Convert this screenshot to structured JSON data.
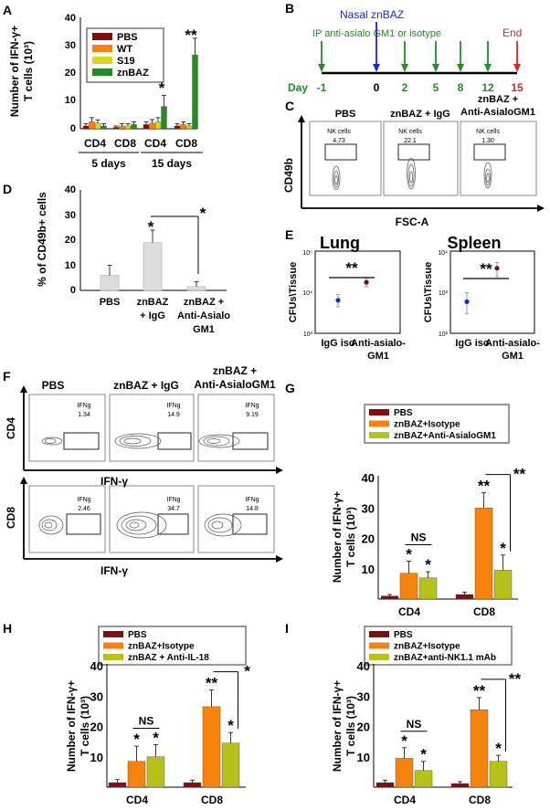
{
  "colors": {
    "pbs": "#7b1010",
    "orange": "#f7830f",
    "yellowgreen": "#b6c21b",
    "green": "#238b23",
    "s19": "#d8d820",
    "blue": "#1a25d8",
    "red": "#e32020",
    "lung_green": "#2a8a2a"
  },
  "panels": {
    "A": {
      "letter": "A",
      "ylabel1": "Number  of IFN-γ+",
      "ylabel2": "T cells (10³)",
      "yticks": [
        "0",
        "10",
        "20",
        "30",
        "40"
      ],
      "legend": [
        "PBS",
        "WT",
        "S19",
        "znBAZ"
      ],
      "groups": [
        "CD4",
        "CD8",
        "CD4",
        "CD8"
      ],
      "days": [
        "5 days",
        "15 days"
      ],
      "stars": [
        "*",
        "**"
      ]
    },
    "B": {
      "letter": "B",
      "nasal": "Nasal znBAZ",
      "ip": "IP anti-asialo GM1 or isotype",
      "end": "End",
      "day_label": "Day",
      "days": [
        "-1",
        "0",
        "2",
        "5",
        "8",
        "12",
        "15"
      ]
    },
    "C": {
      "letter": "C",
      "titles": [
        "PBS",
        "znBAZ + IgG",
        "znBAZ +",
        "Anti-AsialoGM1"
      ],
      "gate_label": "NK cells",
      "gate_values": [
        "4.73",
        "22.1",
        "1.30"
      ],
      "ylabel": "CD49b",
      "xlabel": "FSC-A"
    },
    "D": {
      "letter": "D",
      "ylabel": "% of CD49b+ cells",
      "yticks": [
        "0",
        "10",
        "20",
        "30",
        "40"
      ],
      "cats": [
        "PBS",
        "znBAZ",
        "+ IgG",
        "znBAZ +",
        "Anti-Asialo",
        "GM1"
      ],
      "stars": [
        "*",
        "*"
      ]
    },
    "E": {
      "letter": "E",
      "titles": [
        "Lung",
        "Spleen"
      ],
      "ylabel": "CFUs\\Tissue",
      "lung_ticks": [
        "10⁵",
        "10⁴",
        "10³"
      ],
      "spleen_ticks": [
        "10⁴",
        "10³",
        "10²"
      ],
      "xcats": [
        "IgG iso",
        "Anti-asialo-",
        "GM1"
      ],
      "stars": [
        "**",
        "**"
      ]
    },
    "F": {
      "letter": "F",
      "titles": [
        "PBS",
        "znBAZ + IgG",
        "znBAZ +",
        "Anti-AsialoGM1"
      ],
      "gate_label": "IFNg",
      "cd4_values": [
        "1.34",
        "14.9",
        "9.19"
      ],
      "cd8_values": [
        "2.46",
        "34.7",
        "14.8"
      ],
      "ylabel_top": "CD4",
      "ylabel_bottom": "CD8",
      "xlabel": "IFN-γ"
    },
    "G": {
      "letter": "G",
      "legend": [
        "PBS",
        "znBAZ+Isotype",
        "znBAZ+Anti-AsialoGM1"
      ],
      "yticks": [
        "10",
        "20",
        "30",
        "40"
      ],
      "cats": [
        "CD4",
        "CD8"
      ],
      "ns": "NS",
      "ylabel1": "Number  of IFN-γ+",
      "ylabel2": "T cells (10³)"
    },
    "H": {
      "letter": "H",
      "legend": [
        "PBS",
        "znBAZ+Isotype",
        "znBAZ + Anti-IL-18"
      ],
      "yticks": [
        "10",
        "20",
        "30",
        "40"
      ],
      "cats": [
        "CD4",
        "CD8"
      ],
      "ns": "NS",
      "ylabel1": "Number  of IFN-γ+",
      "ylabel2": "T cells (10³)"
    },
    "I": {
      "letter": "I",
      "legend": [
        "PBS",
        "znBAZ+Isotype",
        "znBAZ+anti-NK1.1 mAb"
      ],
      "yticks": [
        "10",
        "20",
        "30",
        "40"
      ],
      "cats": [
        "CD4",
        "CD8"
      ],
      "ns": "NS",
      "ylabel1": "Number  of IFN-γ+",
      "ylabel2": "T cells (10³)"
    }
  },
  "chart_data": [
    {
      "id": "A",
      "type": "bar",
      "ylim": [
        0,
        40
      ],
      "categories": [
        "CD4 5d",
        "CD8 5d",
        "CD4 15d",
        "CD8 15d"
      ],
      "series": [
        {
          "name": "PBS",
          "values": [
            1,
            0.5,
            1.5,
            1
          ],
          "err": [
            0.8,
            0.5,
            1,
            0.8
          ]
        },
        {
          "name": "WT",
          "values": [
            2.5,
            1,
            2,
            1.5
          ],
          "err": [
            1.5,
            0.8,
            1.3,
            1
          ]
        },
        {
          "name": "S19",
          "values": [
            2,
            1,
            2.5,
            1
          ],
          "err": [
            1.2,
            0.8,
            1.5,
            0.8
          ]
        },
        {
          "name": "znBAZ",
          "values": [
            1,
            1.5,
            8,
            26.5
          ],
          "err": [
            0.8,
            1,
            4,
            6
          ]
        }
      ]
    },
    {
      "id": "D",
      "type": "bar",
      "ylim": [
        0,
        40
      ],
      "categories": [
        "PBS",
        "znBAZ + IgG",
        "znBAZ + Anti-Asialo GM1"
      ],
      "values": [
        6,
        19,
        1.5
      ],
      "err": [
        4,
        5,
        2
      ]
    },
    {
      "id": "E-Lung",
      "type": "scatter",
      "ylog": [
        1000,
        100000
      ],
      "categories": [
        "IgG iso",
        "Anti-asialo-GM1"
      ],
      "values": [
        6500,
        18000
      ],
      "err_lo": [
        4500,
        14000
      ],
      "err_hi": [
        9000,
        24000
      ]
    },
    {
      "id": "E-Spleen",
      "type": "scatter",
      "ylog": [
        100,
        10000
      ],
      "categories": [
        "IgG iso",
        "Anti-asialo-GM1"
      ],
      "values": [
        600,
        4000
      ],
      "err_lo": [
        300,
        2500
      ],
      "err_hi": [
        1000,
        5500
      ]
    },
    {
      "id": "G",
      "type": "bar",
      "ylim": [
        0,
        40
      ],
      "categories": [
        "CD4",
        "CD8"
      ],
      "series": [
        {
          "name": "PBS",
          "values": [
            1,
            1.5
          ],
          "err": [
            0.5,
            0.8
          ]
        },
        {
          "name": "znBAZ+Isotype",
          "values": [
            8.5,
            30
          ],
          "err": [
            4,
            5
          ]
        },
        {
          "name": "znBAZ+Anti-AsialoGM1",
          "values": [
            7,
            9.5
          ],
          "err": [
            2,
            5
          ]
        }
      ]
    },
    {
      "id": "H",
      "type": "bar",
      "ylim": [
        0,
        40
      ],
      "categories": [
        "CD4",
        "CD8"
      ],
      "series": [
        {
          "name": "PBS",
          "values": [
            1.5,
            1.5
          ],
          "err": [
            1,
            0.8
          ]
        },
        {
          "name": "znBAZ+Isotype",
          "values": [
            8.5,
            26.5
          ],
          "err": [
            5,
            5.5
          ]
        },
        {
          "name": "znBAZ + Anti-IL-18",
          "values": [
            10,
            14.5
          ],
          "err": [
            4,
            3.5
          ]
        }
      ]
    },
    {
      "id": "I",
      "type": "bar",
      "ylim": [
        0,
        40
      ],
      "categories": [
        "CD4",
        "CD8"
      ],
      "series": [
        {
          "name": "PBS",
          "values": [
            1.5,
            1.2
          ],
          "err": [
            0.8,
            0.6
          ]
        },
        {
          "name": "znBAZ+Isotype",
          "values": [
            9.5,
            25.5
          ],
          "err": [
            3.5,
            4
          ]
        },
        {
          "name": "znBAZ+anti-NK1.1 mAb",
          "values": [
            5.5,
            8.5
          ],
          "err": [
            3,
            2
          ]
        }
      ]
    }
  ]
}
